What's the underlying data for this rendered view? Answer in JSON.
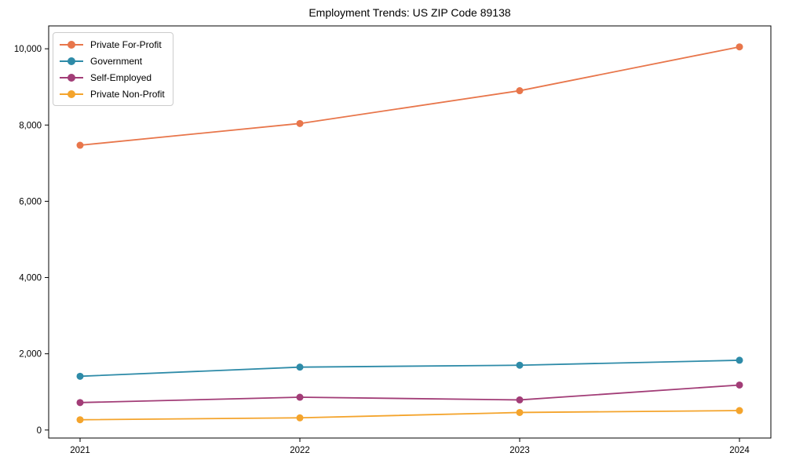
{
  "chart_data": {
    "type": "line",
    "title": "Employment Trends: US ZIP Code 89138",
    "xlabel": "",
    "ylabel": "",
    "x_categories": [
      "2021",
      "2022",
      "2023",
      "2024"
    ],
    "y_tick_values": [
      0,
      2000,
      4000,
      6000,
      8000,
      10000
    ],
    "y_tick_labels": [
      "0",
      "2,000",
      "4,000",
      "6,000",
      "8,000",
      "10,000"
    ],
    "ylim": [
      -210,
      10600
    ],
    "grid": false,
    "legend_position": "upper-left",
    "series": [
      {
        "name": "Private For-Profit",
        "color": "#E8764B",
        "values": [
          7470,
          8040,
          8900,
          10050
        ]
      },
      {
        "name": "Government",
        "color": "#2E8BA8",
        "values": [
          1410,
          1650,
          1700,
          1830
        ]
      },
      {
        "name": "Self-Employed",
        "color": "#A23D77",
        "values": [
          720,
          860,
          790,
          1180
        ]
      },
      {
        "name": "Private Non-Profit",
        "color": "#F4A42C",
        "values": [
          270,
          320,
          460,
          510
        ]
      }
    ]
  }
}
